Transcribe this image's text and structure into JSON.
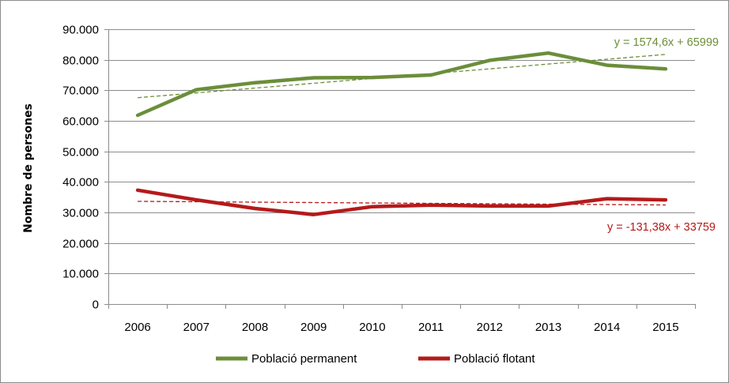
{
  "chart_data": {
    "type": "line",
    "title": "",
    "xlabel": "",
    "ylabel": "Nombre de persones",
    "ylim": [
      0,
      90000
    ],
    "yticks": [
      "0",
      "10.000",
      "20.000",
      "30.000",
      "40.000",
      "50.000",
      "60.000",
      "70.000",
      "80.000",
      "90.000"
    ],
    "ytick_values": [
      0,
      10000,
      20000,
      30000,
      40000,
      50000,
      60000,
      70000,
      80000,
      90000
    ],
    "categories": [
      "2006",
      "2007",
      "2008",
      "2009",
      "2010",
      "2011",
      "2012",
      "2013",
      "2014",
      "2015"
    ],
    "grid": "horizontal",
    "legend_position": "bottom",
    "series": [
      {
        "name": "Població permanent",
        "color": "#6b8e3a",
        "values": [
          61800,
          70200,
          72500,
          74100,
          74200,
          75000,
          79800,
          82200,
          78200,
          77000
        ],
        "trendline": {
          "equation": "y = 1574,6x + 65999",
          "slope": 1574.6,
          "intercept": 65999,
          "color": "#6b8e3a"
        }
      },
      {
        "name": "Població flotant",
        "color": "#b51a1a",
        "values": [
          37300,
          34100,
          31300,
          29300,
          31900,
          32400,
          32100,
          32100,
          34500,
          34100
        ],
        "trendline": {
          "equation": "y = -131,38x + 33759",
          "slope": -131.38,
          "intercept": 33759,
          "color": "#b51a1a"
        }
      }
    ]
  }
}
